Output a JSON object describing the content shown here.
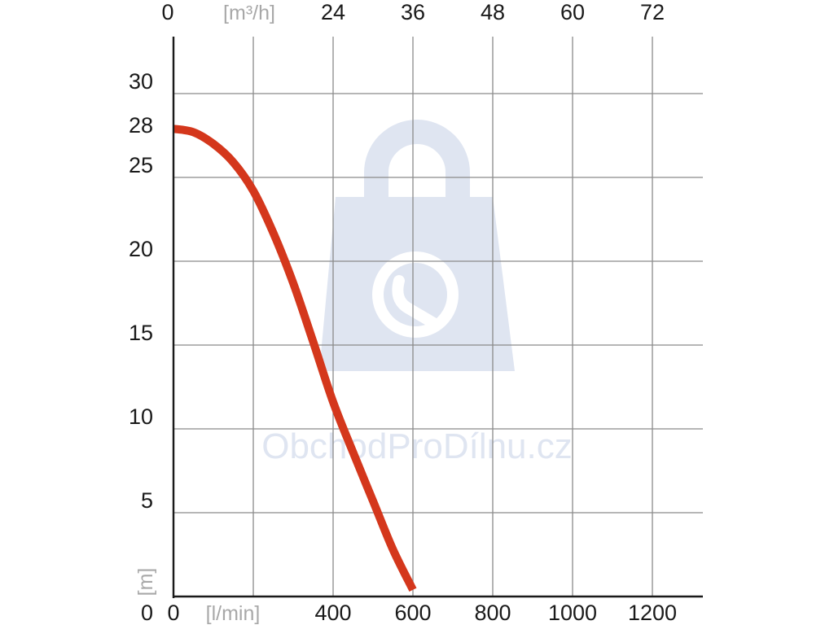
{
  "watermark": {
    "text": "ObchodProDílnu.cz",
    "color": "#dfe5f1"
  },
  "chart_data": {
    "type": "line",
    "title": "",
    "xlabel": "[l/min]",
    "ylabel": "[m]",
    "top_axis_label": "[m³/h]",
    "xlim": [
      0,
      1200
    ],
    "ylim": [
      0,
      30
    ],
    "x_ticks": [
      0,
      200,
      400,
      600,
      800,
      1000,
      1200
    ],
    "x_tick_labels": [
      "0",
      "",
      "400",
      "600",
      "800",
      "1000",
      "1200"
    ],
    "top_ticks": [
      0,
      200,
      400,
      600,
      800,
      1000,
      1200
    ],
    "top_tick_labels": [
      "0",
      "",
      "24",
      "36",
      "48",
      "60",
      "72"
    ],
    "y_ticks": [
      0,
      5,
      10,
      15,
      20,
      25,
      30
    ],
    "y_tick_labels": [
      "0",
      "5",
      "10",
      "15",
      "20",
      "25",
      "30"
    ],
    "highlight_y": {
      "value": 28,
      "label": "28",
      "color": "#c0202a"
    },
    "grid": true,
    "series": [
      {
        "color": "#d4371c",
        "x": [
          0,
          50,
          100,
          150,
          200,
          250,
          300,
          350,
          400,
          450,
          500,
          550,
          600
        ],
        "y": [
          27.9,
          27.7,
          27.0,
          25.9,
          24.2,
          21.7,
          18.7,
          15.2,
          11.6,
          8.6,
          5.7,
          2.8,
          0.4
        ]
      }
    ]
  }
}
